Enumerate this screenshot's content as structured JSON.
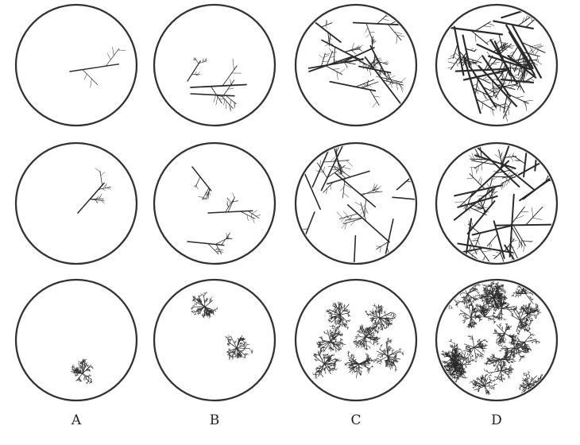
{
  "columns": [
    {
      "label": "A"
    },
    {
      "label": "B"
    },
    {
      "label": "C"
    },
    {
      "label": "D"
    }
  ],
  "rows": 3,
  "colors": {
    "ink": "#2a2a2a",
    "circle": "#333333",
    "background": "#ffffff"
  }
}
